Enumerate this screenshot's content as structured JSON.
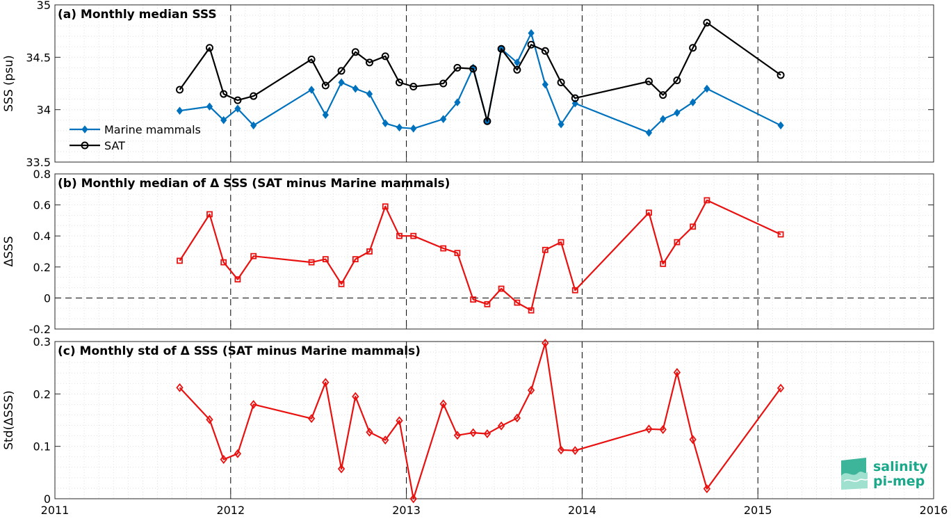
{
  "chart_data": [
    {
      "type": "line",
      "title": "(a) Monthly median SSS",
      "ylabel": "SSS (psu)",
      "xlim": [
        2011,
        2016
      ],
      "ylim": [
        33.5,
        35
      ],
      "yticks": [
        "33.5",
        "34",
        "34.5",
        "35"
      ],
      "ytick_values": [
        33.5,
        34,
        34.5,
        35
      ],
      "grid": "on",
      "legend_placement": "left",
      "series": [
        {
          "name": "Marine mammals",
          "color": "#0072bd",
          "marker": "diamond",
          "x": [
            2011.71,
            2011.88,
            2011.96,
            2012.04,
            2012.13,
            2012.46,
            2012.54,
            2012.63,
            2012.71,
            2012.79,
            2012.88,
            2012.96,
            2013.04,
            2013.21,
            2013.29,
            2013.38,
            2013.46,
            2013.54,
            2013.63,
            2013.71,
            2013.79,
            2013.88,
            2013.96,
            2014.38,
            2014.46,
            2014.54,
            2014.63,
            2014.71,
            2015.13
          ],
          "y": [
            33.99,
            34.03,
            33.9,
            34.01,
            33.85,
            34.19,
            33.95,
            34.26,
            34.2,
            34.15,
            33.87,
            33.83,
            33.82,
            33.91,
            34.07,
            34.4,
            33.89,
            34.58,
            34.45,
            34.73,
            34.24,
            33.86,
            34.06,
            33.78,
            33.91,
            33.97,
            34.07,
            34.2,
            33.85
          ]
        },
        {
          "name": "SAT",
          "color": "#000000",
          "marker": "circle",
          "x": [
            2011.71,
            2011.88,
            2011.96,
            2012.04,
            2012.13,
            2012.46,
            2012.54,
            2012.63,
            2012.71,
            2012.79,
            2012.88,
            2012.96,
            2013.04,
            2013.21,
            2013.29,
            2013.38,
            2013.46,
            2013.54,
            2013.63,
            2013.71,
            2013.79,
            2013.88,
            2013.96,
            2014.38,
            2014.46,
            2014.54,
            2014.63,
            2014.71,
            2015.13
          ],
          "y": [
            34.19,
            34.59,
            34.15,
            34.09,
            34.13,
            34.48,
            34.23,
            34.37,
            34.55,
            34.45,
            34.51,
            34.26,
            34.22,
            34.25,
            34.4,
            34.39,
            33.89,
            34.58,
            34.38,
            34.62,
            34.56,
            34.26,
            34.11,
            34.27,
            34.14,
            34.28,
            34.59,
            34.83,
            34.33
          ]
        }
      ]
    },
    {
      "type": "line",
      "title": "(b) Monthly median of Δ SSS (SAT minus Marine mammals)",
      "ylabel": "ΔSSS",
      "xlim": [
        2011,
        2016
      ],
      "ylim": [
        -0.2,
        0.8
      ],
      "yticks": [
        "-0.2",
        "0",
        "0.2",
        "0.4",
        "0.6",
        "0.8"
      ],
      "ytick_values": [
        -0.2,
        0,
        0.2,
        0.4,
        0.6,
        0.8
      ],
      "grid": "on",
      "zero_line": true,
      "series": [
        {
          "color": "#e8110f",
          "marker": "square",
          "x": [
            2011.71,
            2011.88,
            2011.96,
            2012.04,
            2012.13,
            2012.46,
            2012.54,
            2012.63,
            2012.71,
            2012.79,
            2012.88,
            2012.96,
            2013.04,
            2013.21,
            2013.29,
            2013.38,
            2013.46,
            2013.54,
            2013.63,
            2013.71,
            2013.79,
            2013.88,
            2013.96,
            2014.38,
            2014.46,
            2014.54,
            2014.63,
            2014.71,
            2015.13
          ],
          "y": [
            0.24,
            0.54,
            0.23,
            0.12,
            0.27,
            0.23,
            0.25,
            0.09,
            0.25,
            0.3,
            0.59,
            0.4,
            0.4,
            0.32,
            0.29,
            -0.01,
            -0.04,
            0.06,
            -0.03,
            -0.08,
            0.31,
            0.36,
            0.05,
            0.55,
            0.22,
            0.36,
            0.46,
            0.63,
            0.41
          ]
        }
      ]
    },
    {
      "type": "line",
      "title": "(c) Monthly std of Δ SSS (SAT minus Marine mammals)",
      "ylabel": "Std(ΔSSS)",
      "xlim": [
        2011,
        2016
      ],
      "ylim": [
        0,
        0.3
      ],
      "yticks": [
        "0",
        "0.1",
        "0.2",
        "0.3"
      ],
      "ytick_values": [
        0,
        0.1,
        0.2,
        0.3
      ],
      "xticks": [
        "2011",
        "2012",
        "2013",
        "2014",
        "2015",
        "2016"
      ],
      "xtick_values": [
        2011,
        2012,
        2013,
        2014,
        2015,
        2016
      ],
      "grid": "on",
      "series": [
        {
          "color": "#e8110f",
          "marker": "diamond-open",
          "x": [
            2011.71,
            2011.88,
            2011.96,
            2012.04,
            2012.13,
            2012.46,
            2012.54,
            2012.63,
            2012.71,
            2012.79,
            2012.88,
            2012.96,
            2013.04,
            2013.21,
            2013.29,
            2013.38,
            2013.46,
            2013.54,
            2013.63,
            2013.71,
            2013.79,
            2013.88,
            2013.96,
            2014.38,
            2014.46,
            2014.54,
            2014.63,
            2014.71,
            2015.13
          ],
          "y": [
            0.212,
            0.151,
            0.075,
            0.086,
            0.18,
            0.153,
            0.222,
            0.057,
            0.195,
            0.127,
            0.112,
            0.149,
            0.0,
            0.181,
            0.121,
            0.126,
            0.124,
            0.139,
            0.154,
            0.207,
            0.297,
            0.093,
            0.092,
            0.133,
            0.132,
            0.241,
            0.113,
            0.019,
            0.211
          ]
        }
      ]
    }
  ],
  "logo": {
    "line1": "salinity",
    "line2": "pi-mep",
    "color": "#1aa88a"
  }
}
